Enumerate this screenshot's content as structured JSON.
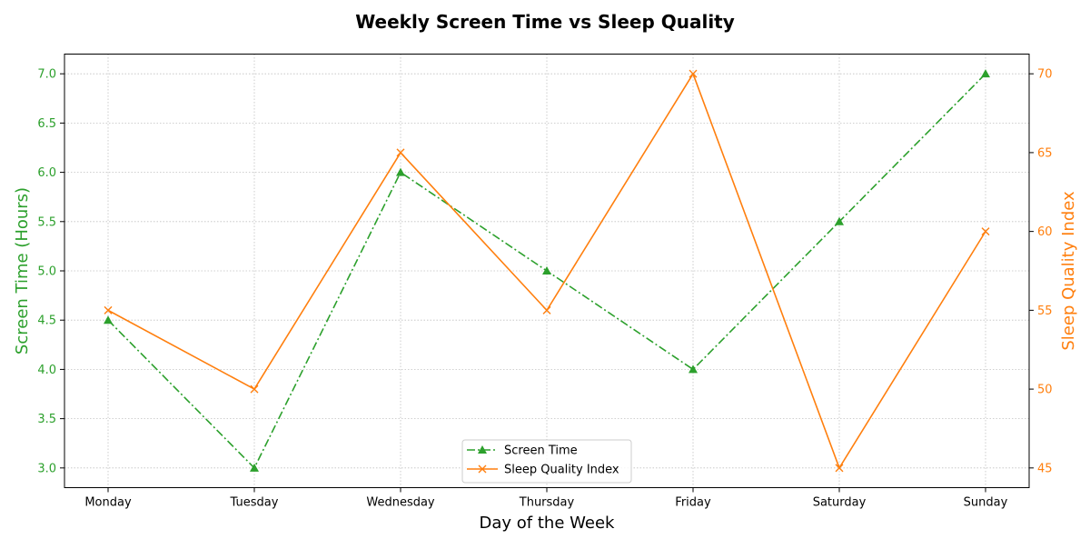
{
  "chart_data": {
    "type": "line",
    "title": "Weekly Screen Time vs Sleep Quality",
    "xlabel": "Day of the Week",
    "ylabel": "Screen Time (Hours)",
    "y2label": "Sleep Quality Index",
    "categories": [
      "Monday",
      "Tuesday",
      "Wednesday",
      "Thursday",
      "Friday",
      "Saturday",
      "Sunday"
    ],
    "ylim": [
      2.8,
      7.2
    ],
    "y2lim": [
      43.75,
      71.25
    ],
    "yticks": [
      "3.0",
      "3.5",
      "4.0",
      "4.5",
      "5.0",
      "5.5",
      "6.0",
      "6.5",
      "7.0"
    ],
    "y2ticks": [
      "45",
      "50",
      "55",
      "60",
      "65",
      "70"
    ],
    "grid": true,
    "legend_position": "lower center",
    "series": [
      {
        "name": "Screen Time",
        "axis": "left",
        "values": [
          4.5,
          3.0,
          6.0,
          5.0,
          4.0,
          5.5,
          7.0
        ],
        "color": "#2ca02c",
        "line_style": "dash-dot",
        "marker": "triangle"
      },
      {
        "name": "Sleep Quality Index",
        "axis": "right",
        "values": [
          55,
          50,
          65,
          55,
          70,
          45,
          60
        ],
        "color": "#ff7f0e",
        "line_style": "solid",
        "marker": "x"
      }
    ]
  }
}
